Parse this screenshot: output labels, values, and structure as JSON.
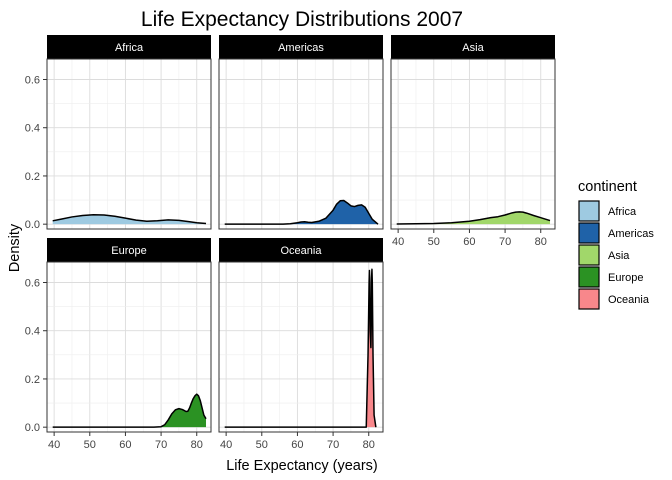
{
  "chart_data": {
    "type": "area",
    "title": "Life Expectancy Distributions 2007",
    "xlabel": "Life Expectancy (years)",
    "ylabel": "Density",
    "xlim": [
      38,
      84
    ],
    "ylim": [
      -0.02,
      0.685
    ],
    "x_ticks": [
      40,
      50,
      60,
      70,
      80
    ],
    "y_ticks": [
      0.0,
      0.2,
      0.4,
      0.6
    ],
    "y_tick_labels": [
      "0.0",
      "0.2",
      "0.4",
      "0.6"
    ],
    "grid": true,
    "legend": {
      "title": "continent",
      "placement": "right",
      "items": [
        "Africa",
        "Americas",
        "Asia",
        "Europe",
        "Oceania"
      ]
    },
    "colors": {
      "Africa": "#9ecae1",
      "Americas": "#1f62a8",
      "Asia": "#a1d76a",
      "Europe": "#2b9223",
      "Oceania": "#f8878b"
    },
    "panels": [
      {
        "name": "Africa",
        "row": 0,
        "col": 0,
        "x": [
          39.6,
          42,
          45,
          48,
          51,
          54,
          57,
          60,
          63,
          66,
          69,
          72,
          75,
          78,
          80,
          82.6
        ],
        "y": [
          0.014,
          0.021,
          0.03,
          0.036,
          0.039,
          0.038,
          0.033,
          0.025,
          0.017,
          0.012,
          0.014,
          0.018,
          0.016,
          0.01,
          0.006,
          0.003
        ]
      },
      {
        "name": "Americas",
        "row": 0,
        "col": 1,
        "x": [
          39.6,
          50,
          56,
          58,
          60,
          61,
          62,
          63,
          64,
          66,
          68,
          70,
          71,
          72,
          73,
          74,
          75,
          76,
          77,
          78,
          79,
          80,
          81,
          82.6
        ],
        "y": [
          0.0,
          0.0,
          0.0,
          0.002,
          0.006,
          0.009,
          0.01,
          0.008,
          0.007,
          0.012,
          0.025,
          0.058,
          0.083,
          0.097,
          0.098,
          0.088,
          0.076,
          0.073,
          0.078,
          0.08,
          0.07,
          0.045,
          0.02,
          0.0
        ]
      },
      {
        "name": "Asia",
        "row": 0,
        "col": 2,
        "x": [
          39.6,
          45,
          50,
          55,
          60,
          63,
          66,
          68,
          70,
          72,
          73,
          74,
          75,
          76,
          78,
          80,
          82.6
        ],
        "y": [
          0.001,
          0.002,
          0.003,
          0.006,
          0.012,
          0.019,
          0.027,
          0.031,
          0.038,
          0.047,
          0.05,
          0.051,
          0.05,
          0.046,
          0.036,
          0.027,
          0.015
        ]
      },
      {
        "name": "Europe",
        "row": 1,
        "col": 0,
        "x": [
          39.6,
          60,
          68,
          70,
          71,
          72,
          73,
          74,
          75,
          76,
          77,
          77.5,
          78,
          78.5,
          79,
          79.5,
          80,
          80.5,
          81,
          81.5,
          82,
          82.6
        ],
        "y": [
          0.0,
          0.0,
          0.0,
          0.002,
          0.01,
          0.03,
          0.055,
          0.072,
          0.077,
          0.073,
          0.065,
          0.066,
          0.08,
          0.1,
          0.118,
          0.13,
          0.137,
          0.13,
          0.11,
          0.08,
          0.05,
          0.035
        ]
      },
      {
        "name": "Oceania",
        "row": 1,
        "col": 1,
        "x": [
          39.6,
          79.3,
          79.8,
          80.1,
          80.2,
          80.3,
          80.4,
          80.6,
          80.7,
          80.8,
          80.9,
          81.0,
          81.2,
          81.5,
          82.0
        ],
        "y": [
          0.0,
          0.0,
          0.3,
          0.6,
          0.65,
          0.6,
          0.4,
          0.33,
          0.42,
          0.62,
          0.655,
          0.6,
          0.3,
          0.05,
          0.0
        ]
      }
    ]
  }
}
